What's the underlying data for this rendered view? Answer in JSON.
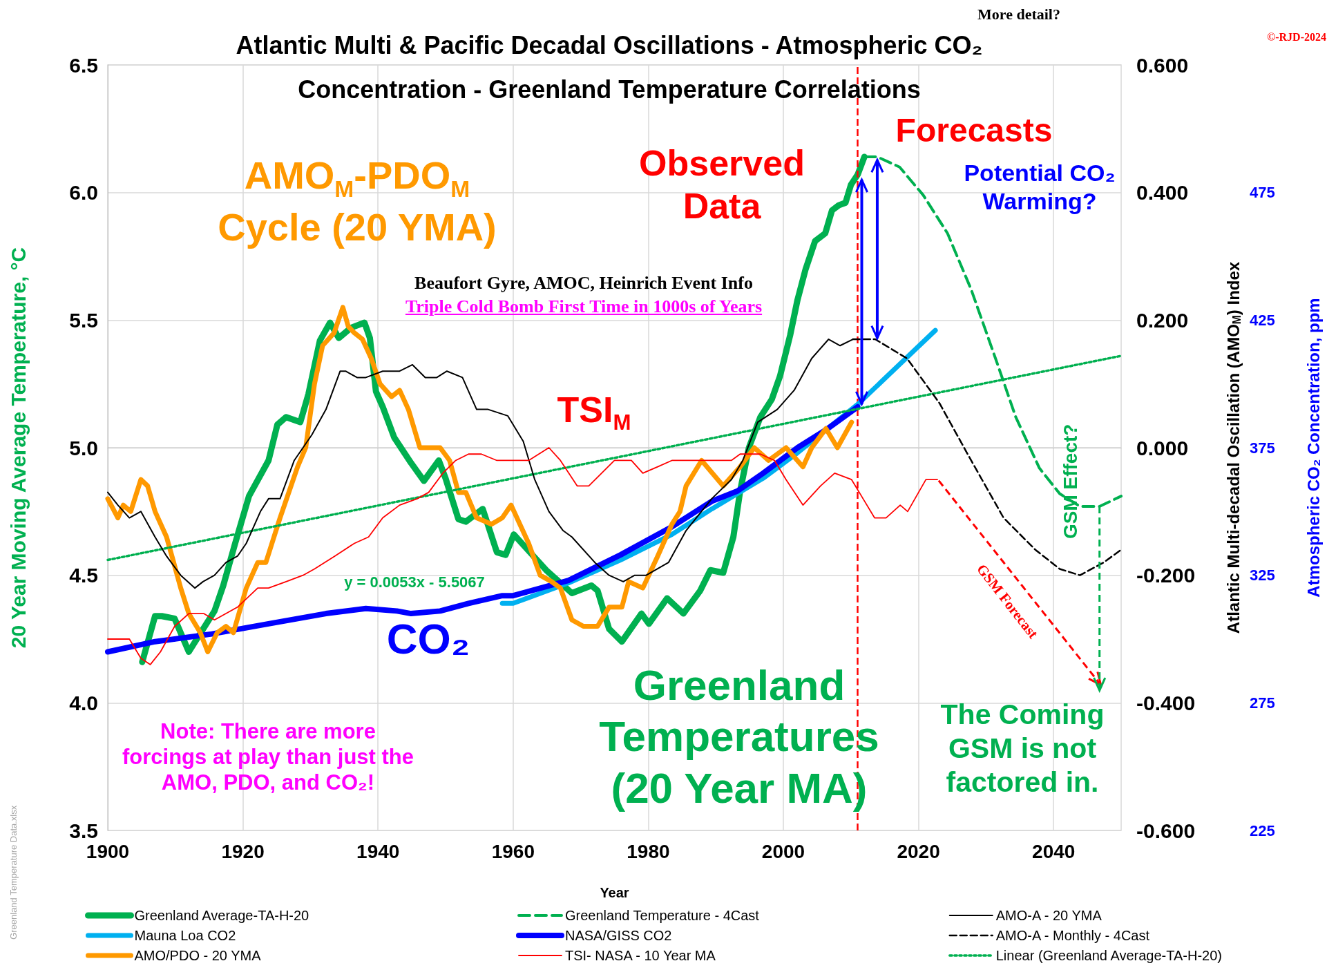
{
  "chart_data": {
    "type": "line",
    "title": "Atlantic Multi & Pacific Decadal Oscillations - Atmospheric CO₂ Concentration - Greenland Temperature Correlations",
    "xlabel": "Year",
    "ylabel": "20 Year Moving Average Temperature, °C",
    "y2label": "Atlantic Multi-decadal Oscillation (AMO$_{M}$) Index",
    "y3label": "Atmospheric CO₂ Concentration, ppm",
    "xlim": [
      1900,
      2050
    ],
    "xticks": [
      1900,
      1920,
      1940,
      1960,
      1980,
      2000,
      2020,
      2040
    ],
    "ylim": [
      3.5,
      6.5
    ],
    "yticks": [
      {
        "value": 3.5,
        "label": "3.5"
      },
      {
        "value": 4,
        "label": "4.0"
      },
      {
        "value": 4.5,
        "label": "4.5"
      },
      {
        "value": 5,
        "label": "5.0"
      },
      {
        "value": 5.5,
        "label": "5.5"
      },
      {
        "value": 6,
        "label": "6.0"
      },
      {
        "value": 6.5,
        "label": "6.5"
      }
    ],
    "y2lim": [
      -0.6,
      0.6
    ],
    "y2ticks": [
      {
        "value": -0.6,
        "label": "-0.600"
      },
      {
        "value": -0.4,
        "label": "-0.400"
      },
      {
        "value": -0.2,
        "label": "-0.200"
      },
      {
        "value": 0,
        "label": "0.000"
      },
      {
        "value": 0.2,
        "label": "0.200"
      },
      {
        "value": 0.4,
        "label": "0.400"
      },
      {
        "value": 0.6,
        "label": "0.600"
      }
    ],
    "y3lim": [
      225,
      525
    ],
    "y3ticks": [
      225,
      275,
      325,
      375,
      425,
      475
    ],
    "grid": true,
    "legend": "bottom",
    "marker": "none",
    "ref_lines": [
      {
        "axis": "x",
        "value": 2011,
        "color": "#ff0000",
        "line_style": "dashed"
      }
    ],
    "annotations": [
      "More detail?",
      "©-RJD-2024",
      "AMO$_{M}$-PDO$_{M}$ Cycle (20 YMA)",
      "Observed Data",
      {
        "text": "Forecasts",
        "x": 2013.9,
        "y": 6.14
      },
      "Potential CO₂ Warming?",
      "Beaufort Gyre, AMOC, Heinrich Event Info",
      "Triple Cold Bomb First Time in 1000s of Years",
      "TSI$_{M}$",
      "y = 0.0053x - 5.5067",
      "CO₂",
      "Greenland Temperatures (20 Year MA)",
      "Note: There are more forcings at play than just the AMO, PDO, and CO₂!",
      {
        "text": "The Coming GSM is not factored in.",
        "x": 2046.8,
        "y": 4.77
      },
      "GSM Effect?",
      "GSM Forecast",
      "Greenland Temperature Data.xlsx"
    ],
    "series": [
      {
        "name": "Greenland Average-TA-H-20",
        "color": "#00b050",
        "line_style": "solid",
        "x": [
          1905.1,
          1907,
          1908,
          1909.9,
          1912,
          1914.6,
          1915.8,
          1917.1,
          1918.8,
          1920.9,
          1923.8,
          1925.1,
          1926.4,
          1928.5,
          1929.7,
          1931.4,
          1932.9,
          1934.2,
          1936,
          1938,
          1938.8,
          1939.7,
          1940.7,
          1942.4,
          1944.9,
          1946.8,
          1949,
          1950,
          1951.9,
          1953,
          1955.5,
          1957.6,
          1958.9,
          1960.1,
          1964.9,
          1968.7,
          1971.6,
          1972.5,
          1974.2,
          1976.1,
          1979,
          1980.1,
          1982.8,
          1985.2,
          1987.7,
          1989.2,
          1991.1,
          1992.6,
          1993.6,
          1994.9,
          1996.6,
          1998.3,
          1999.5,
          2001,
          2002.1,
          2003.3,
          2004.7,
          2006.2,
          2007.2,
          2008.2,
          2009.2,
          2010,
          2011,
          2012
        ],
        "values": [
          4.16,
          4.34,
          4.34,
          4.33,
          4.2,
          4.31,
          4.36,
          4.46,
          4.62,
          4.81,
          4.95,
          5.09,
          5.12,
          5.1,
          5.21,
          5.42,
          5.49,
          5.43,
          5.47,
          5.49,
          5.43,
          5.22,
          5.16,
          5.04,
          4.94,
          4.87,
          4.95,
          4.88,
          4.72,
          4.71,
          4.76,
          4.59,
          4.58,
          4.66,
          4.52,
          4.43,
          4.46,
          4.44,
          4.29,
          4.24,
          4.35,
          4.31,
          4.41,
          4.35,
          4.44,
          4.52,
          4.51,
          4.65,
          4.83,
          5.0,
          5.12,
          5.19,
          5.28,
          5.44,
          5.58,
          5.7,
          5.81,
          5.84,
          5.93,
          5.95,
          5.96,
          6.03,
          6.07,
          6.14
        ]
      },
      {
        "name": "Greenland Temperature - 4Cast",
        "color": "#00b050",
        "line_style": "dashed",
        "x": [
          2012,
          2013.9,
          2017.2,
          2020.7,
          2024.3,
          2027.8,
          2031.4,
          2034.4,
          2037.9,
          2040.9,
          2043.9,
          2046.8,
          2050
        ],
        "values": [
          6.14,
          6.14,
          6.1,
          5.99,
          5.84,
          5.62,
          5.35,
          5.12,
          4.92,
          4.82,
          4.77,
          4.77,
          4.81
        ]
      },
      {
        "name": "AMO-A - 20 YMA",
        "color": "#000000",
        "line_style": "solid",
        "axis": "y2",
        "x": [
          1900,
          1901.5,
          1903.2,
          1904.9,
          1907,
          1908.7,
          1910.8,
          1912.9,
          1914.1,
          1915.8,
          1917.5,
          1919.2,
          1920.5,
          1922.6,
          1923.8,
          1925.5,
          1927.6,
          1930.2,
          1932.3,
          1934.4,
          1935.2,
          1936.9,
          1938.2,
          1940.7,
          1943.2,
          1945.1,
          1947,
          1948.7,
          1950.2,
          1952.5,
          1954.6,
          1956.3,
          1959.2,
          1961.5,
          1963.2,
          1965.3,
          1967.4,
          1968.7,
          1972.1,
          1974.2,
          1976.3,
          1978,
          1979.7,
          1983,
          1985.6,
          1989.4,
          1992.3,
          1994,
          1996.2,
          1999.1,
          2001.6,
          2004.2,
          2006.7,
          2008.4,
          2010.3
        ],
        "values": [
          -0.07,
          -0.09,
          -0.11,
          -0.1,
          -0.14,
          -0.17,
          -0.2,
          -0.22,
          -0.21,
          -0.2,
          -0.18,
          -0.17,
          -0.15,
          -0.1,
          -0.08,
          -0.08,
          -0.02,
          0.02,
          0.06,
          0.12,
          0.12,
          0.11,
          0.11,
          0.12,
          0.12,
          0.13,
          0.11,
          0.11,
          0.12,
          0.11,
          0.06,
          0.06,
          0.05,
          0.01,
          -0.05,
          -0.1,
          -0.13,
          -0.14,
          -0.18,
          -0.2,
          -0.21,
          -0.2,
          -0.2,
          -0.18,
          -0.13,
          -0.08,
          -0.05,
          -0.02,
          0.04,
          0.06,
          0.09,
          0.14,
          0.17,
          0.16,
          0.17
        ]
      },
      {
        "name": "Mauna Loa CO2",
        "color": "#00b0f0",
        "line_style": "solid",
        "axis": "y3",
        "x": [
          1958.4,
          1960,
          1968.2,
          1975.9,
          1983.5,
          1989.4,
          1997,
          2002.1,
          2011,
          2022.5
        ],
        "values": [
          314,
          314,
          322,
          331,
          341,
          351,
          363,
          373,
          392,
          421
        ]
      },
      {
        "name": "NASA/GISS CO2",
        "color": "#0000ff",
        "line_style": "solid",
        "axis": "y3",
        "x": [
          1900,
          1907,
          1915.4,
          1923.8,
          1932.3,
          1938.2,
          1942.8,
          1944.9,
          1949.2,
          1953.4,
          1958.4,
          1960,
          1968.2,
          1975.9,
          1983.5,
          1989.4,
          1993.2,
          1997,
          2002.1,
          2006.3,
          2011
        ],
        "values": [
          295,
          299,
          302,
          306,
          310,
          312,
          311,
          310,
          311,
          314,
          317,
          317,
          323,
          333,
          344,
          354,
          358,
          365,
          375,
          382,
          391
        ]
      },
      {
        "name": "AMO-A - Monthly - 4Cast",
        "color": "#000000",
        "line_style": "dashed",
        "axis": "y2",
        "x": [
          2010.3,
          2013.6,
          2018.3,
          2023.1,
          2027.8,
          2032.6,
          2037.3,
          2040.9,
          2043.9,
          2047.4,
          2050
        ],
        "values": [
          0.17,
          0.17,
          0.14,
          0.07,
          -0.02,
          -0.11,
          -0.16,
          -0.19,
          -0.2,
          -0.18,
          -0.16
        ]
      },
      {
        "name": "AMO/PDO - 20 YMA",
        "color": "#ff9900",
        "line_style": "solid",
        "axis": "y2",
        "x": [
          1900,
          1901.5,
          1902.3,
          1903.4,
          1904.9,
          1905.9,
          1907,
          1908.7,
          1909.5,
          1910.8,
          1912,
          1913.7,
          1914.8,
          1916.2,
          1917.5,
          1918.6,
          1920.5,
          1922.2,
          1923.4,
          1924.3,
          1925.5,
          1926.8,
          1928.1,
          1929.3,
          1930.6,
          1931.8,
          1933.5,
          1934.8,
          1935.6,
          1936.5,
          1937.7,
          1939,
          1940.3,
          1942,
          1943.2,
          1944.5,
          1946.2,
          1947.5,
          1949.2,
          1950.6,
          1951.9,
          1953,
          1954.6,
          1956.8,
          1958.4,
          1959.7,
          1962.3,
          1964,
          1965.7,
          1967,
          1968.7,
          1970.4,
          1972.5,
          1974.2,
          1976.1,
          1977.1,
          1979.2,
          1981.4,
          1983.5,
          1984.7,
          1985.6,
          1987.9,
          1991.1,
          1993.6,
          1995.7,
          1997.8,
          2000.4,
          2002.9,
          2004.2,
          2006.3,
          2008,
          2010.1
        ],
        "values": [
          -0.08,
          -0.11,
          -0.09,
          -0.1,
          -0.05,
          -0.06,
          -0.1,
          -0.14,
          -0.17,
          -0.22,
          -0.26,
          -0.29,
          -0.32,
          -0.29,
          -0.28,
          -0.29,
          -0.22,
          -0.18,
          -0.18,
          -0.15,
          -0.11,
          -0.07,
          -0.03,
          0.0,
          0.1,
          0.16,
          0.18,
          0.22,
          0.19,
          0.18,
          0.17,
          0.14,
          0.1,
          0.08,
          0.09,
          0.06,
          0.0,
          0.0,
          0.0,
          -0.02,
          -0.07,
          -0.07,
          -0.11,
          -0.12,
          -0.11,
          -0.09,
          -0.15,
          -0.2,
          -0.21,
          -0.22,
          -0.27,
          -0.28,
          -0.28,
          -0.25,
          -0.25,
          -0.21,
          -0.22,
          -0.17,
          -0.12,
          -0.1,
          -0.06,
          -0.02,
          -0.06,
          -0.03,
          0.0,
          -0.02,
          0.0,
          -0.03,
          0.0,
          0.03,
          0.0,
          0.04
        ]
      },
      {
        "name": "TSI- NASA - 10 Year MA",
        "color": "#ff0000",
        "line_style": "solid",
        "axis": "y2",
        "x": [
          1900,
          1901.5,
          1903.2,
          1904.9,
          1906.3,
          1907.8,
          1909.9,
          1912,
          1914.2,
          1915.8,
          1917.5,
          1919.2,
          1922.2,
          1923.8,
          1926.4,
          1928.9,
          1930.6,
          1933.6,
          1936.5,
          1938.6,
          1940.7,
          1943.2,
          1945.8,
          1947.5,
          1949.6,
          1951.5,
          1953.4,
          1955.3,
          1957.6,
          1959.3,
          1962.3,
          1965.3,
          1967,
          1969.5,
          1971.2,
          1975,
          1977.5,
          1979.2,
          1981.4,
          1983.5,
          1989.4,
          1992.3,
          1993.6,
          1996.6,
          1998.7,
          2000.4,
          2002.9,
          2005.5,
          2007.6,
          2010.1,
          2011.8,
          2013.5,
          2015.2,
          2017.3,
          2018.4,
          2021.1,
          2022.8
        ],
        "values": [
          -0.3,
          -0.3,
          -0.3,
          -0.33,
          -0.34,
          -0.32,
          -0.28,
          -0.26,
          -0.26,
          -0.27,
          -0.26,
          -0.25,
          -0.22,
          -0.22,
          -0.21,
          -0.2,
          -0.19,
          -0.17,
          -0.15,
          -0.14,
          -0.11,
          -0.09,
          -0.08,
          -0.07,
          -0.04,
          -0.02,
          -0.01,
          -0.01,
          -0.02,
          -0.02,
          -0.02,
          0.0,
          -0.02,
          -0.06,
          -0.06,
          -0.02,
          -0.02,
          -0.04,
          -0.03,
          -0.02,
          -0.02,
          -0.02,
          -0.01,
          -0.01,
          -0.02,
          -0.05,
          -0.09,
          -0.06,
          -0.04,
          -0.05,
          -0.08,
          -0.11,
          -0.11,
          -0.09,
          -0.1,
          -0.05,
          -0.05
        ]
      },
      {
        "name": "Linear (Greenland Average-TA-H-20)",
        "color": "#00b050",
        "line_style": "dotted",
        "x": [
          1900,
          2050
        ],
        "values": [
          4.56,
          5.36
        ]
      }
    ]
  }
}
